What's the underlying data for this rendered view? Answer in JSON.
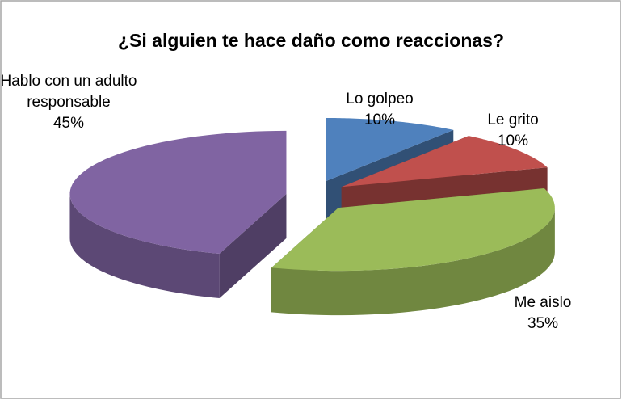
{
  "chart_data": {
    "type": "pie",
    "title": "¿Si alguien te hace daño como reaccionas?",
    "categories": [
      "Lo golpeo",
      "Le grito",
      "Me aislo",
      "Hablo con un adulto responsable"
    ],
    "values": [
      10,
      10,
      35,
      45
    ],
    "value_labels": [
      "10%",
      "10%",
      "35%",
      "45%"
    ],
    "colors": [
      "#4f81bd",
      "#c0504d",
      "#9bbb59",
      "#8064a2"
    ]
  }
}
